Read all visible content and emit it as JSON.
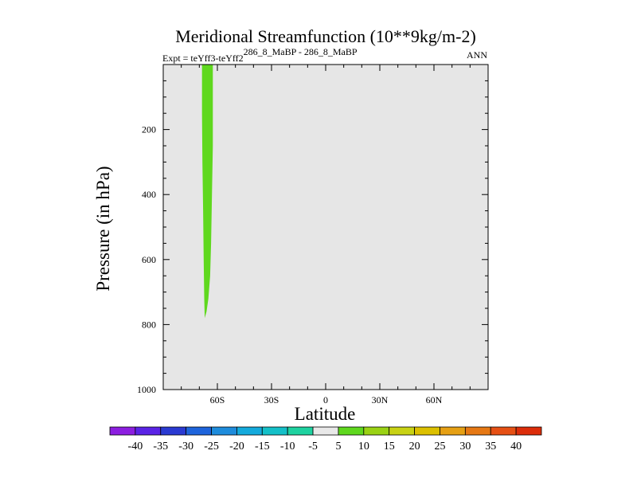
{
  "chart_data": {
    "type": "contour",
    "title": "Meridional Streamfunction (10**9kg/m-2)",
    "left_subtitle_prefix": "Expt = teYff3-teYff2",
    "left_subtitle_superscript": "286_8_MaBP - 286_8_MaBP",
    "right_subtitle": "ANN",
    "xlabel": "Latitude",
    "ylabel": "Pressure (in hPa)",
    "xlim": [
      -90,
      90
    ],
    "ylim": [
      0,
      1000
    ],
    "y_inverted": true,
    "x_ticks": [
      {
        "value": -60,
        "label": "60S"
      },
      {
        "value": -30,
        "label": "30S"
      },
      {
        "value": 0,
        "label": "0"
      },
      {
        "value": 30,
        "label": "30N"
      },
      {
        "value": 60,
        "label": "60N"
      }
    ],
    "y_ticks": [
      {
        "value": 200,
        "label": "200"
      },
      {
        "value": 400,
        "label": "400"
      },
      {
        "value": 600,
        "label": "600"
      },
      {
        "value": 800,
        "label": "800"
      },
      {
        "value": 1000,
        "label": "1000"
      }
    ],
    "background_color": "#e6e6e6",
    "filled_region": {
      "level_range": "5 to 10",
      "color": "#5fd81e",
      "boundary": [
        {
          "lat": -68.5,
          "p": 0
        },
        {
          "lat": -62.5,
          "p": 0
        },
        {
          "lat": -62.5,
          "p": 250
        },
        {
          "lat": -63.0,
          "p": 400
        },
        {
          "lat": -63.5,
          "p": 550
        },
        {
          "lat": -64.0,
          "p": 650
        },
        {
          "lat": -65.0,
          "p": 720
        },
        {
          "lat": -66.0,
          "p": 760
        },
        {
          "lat": -67.0,
          "p": 780
        },
        {
          "lat": -67.3,
          "p": 720
        },
        {
          "lat": -67.6,
          "p": 600
        },
        {
          "lat": -67.9,
          "p": 450
        },
        {
          "lat": -68.3,
          "p": 300
        },
        {
          "lat": -68.5,
          "p": 150
        }
      ]
    },
    "colorbar": {
      "labels": [
        "-40",
        "-35",
        "-30",
        "-25",
        "-20",
        "-15",
        "-10",
        "-5",
        "5",
        "10",
        "15",
        "20",
        "25",
        "30",
        "35",
        "40"
      ],
      "colors": [
        "#8c1ee0",
        "#5a23e6",
        "#2a3ad2",
        "#1e64dc",
        "#1e8cdc",
        "#14aadc",
        "#14c0c8",
        "#1ed2a0",
        "#e8e8e8",
        "#5fd81e",
        "#9ad214",
        "#c8d214",
        "#dcc000",
        "#e6a014",
        "#e67814",
        "#e65014",
        "#dc2d0a"
      ]
    }
  }
}
